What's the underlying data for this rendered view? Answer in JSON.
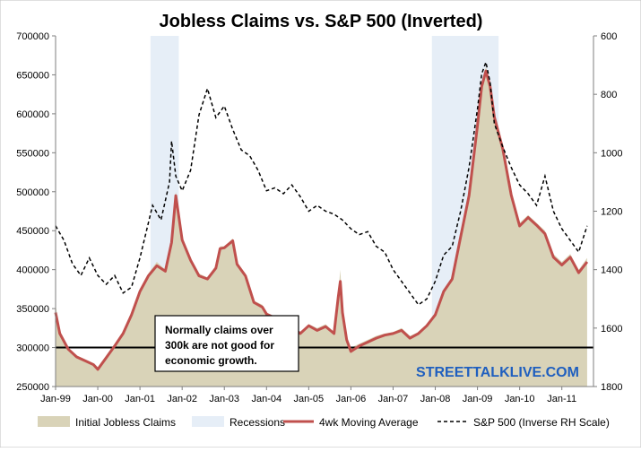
{
  "chart_data": {
    "type": "area",
    "title": "Jobless Claims vs. S&P 500 (Inverted)",
    "xlabel": "",
    "ylabel": "",
    "x_ticks": [
      "Jan-99",
      "Jan-00",
      "Jan-01",
      "Jan-02",
      "Jan-03",
      "Jan-04",
      "Jan-05",
      "Jan-06",
      "Jan-07",
      "Jan-08",
      "Jan-09",
      "Jan-10",
      "Jan-11"
    ],
    "x_range": [
      1999.0,
      2011.75
    ],
    "y_left": {
      "range": [
        250000,
        700000
      ],
      "ticks": [
        "250000",
        "300000",
        "350000",
        "400000",
        "450000",
        "500000",
        "550000",
        "600000",
        "650000",
        "700000"
      ]
    },
    "y_right": {
      "range": [
        600,
        1800
      ],
      "inverted": true,
      "ticks": [
        "600",
        "800",
        "1000",
        "1200",
        "1400",
        "1600",
        "1800"
      ]
    },
    "grid": false,
    "legend_position": "bottom",
    "reference_line": {
      "value": 300000,
      "axis": "left",
      "color": "#000000"
    },
    "recessions": [
      {
        "start": 2001.25,
        "end": 2001.92
      },
      {
        "start": 2007.92,
        "end": 2009.5
      }
    ],
    "annotations": [
      {
        "lines": [
          "Normally claims over",
          "300k are not good for",
          "economic growth."
        ]
      }
    ],
    "watermark": "STREETTALKLIVE.COM",
    "series": [
      {
        "name": "Initial Jobless Claims",
        "kind": "area",
        "axis": "left",
        "color": "#d9d3b8",
        "x": [
          1999.0,
          1999.1,
          1999.3,
          1999.5,
          1999.7,
          1999.9,
          2000.0,
          2000.2,
          2000.4,
          2000.6,
          2000.8,
          2001.0,
          2001.2,
          2001.4,
          2001.6,
          2001.75,
          2001.85,
          2002.0,
          2002.2,
          2002.4,
          2002.6,
          2002.8,
          2002.9,
          2003.0,
          2003.2,
          2003.3,
          2003.5,
          2003.7,
          2003.9,
          2004.0,
          2004.2,
          2004.4,
          2004.6,
          2004.8,
          2005.0,
          2005.2,
          2005.4,
          2005.6,
          2005.7,
          2005.75,
          2005.8,
          2005.9,
          2006.0,
          2006.2,
          2006.4,
          2006.6,
          2006.8,
          2007.0,
          2007.2,
          2007.4,
          2007.6,
          2007.8,
          2008.0,
          2008.2,
          2008.4,
          2008.6,
          2008.8,
          2009.0,
          2009.1,
          2009.2,
          2009.3,
          2009.4,
          2009.6,
          2009.8,
          2010.0,
          2010.2,
          2010.4,
          2010.6,
          2010.8,
          2011.0,
          2011.2,
          2011.4,
          2011.6
        ],
        "values": [
          355000,
          320000,
          300000,
          290000,
          285000,
          280000,
          275000,
          290000,
          305000,
          320000,
          345000,
          375000,
          395000,
          410000,
          400000,
          440000,
          500000,
          440000,
          415000,
          395000,
          390000,
          405000,
          430000,
          430000,
          440000,
          410000,
          395000,
          360000,
          355000,
          345000,
          340000,
          335000,
          330000,
          320000,
          330000,
          325000,
          330000,
          320000,
          370000,
          400000,
          350000,
          315000,
          300000,
          305000,
          310000,
          315000,
          318000,
          320000,
          325000,
          315000,
          320000,
          330000,
          345000,
          375000,
          390000,
          445000,
          500000,
          590000,
          640000,
          660000,
          640000,
          600000,
          560000,
          500000,
          460000,
          470000,
          460000,
          450000,
          420000,
          410000,
          420000,
          400000,
          415000
        ]
      },
      {
        "name": "Recessions",
        "kind": "band",
        "axis": "left",
        "color": "#e6eef7",
        "x": [],
        "values": []
      },
      {
        "name": "4wk Moving Average",
        "kind": "line",
        "axis": "left",
        "color": "#c0504d",
        "x": [
          1999.0,
          1999.1,
          1999.3,
          1999.5,
          1999.7,
          1999.9,
          2000.0,
          2000.2,
          2000.4,
          2000.6,
          2000.8,
          2001.0,
          2001.2,
          2001.4,
          2001.6,
          2001.75,
          2001.85,
          2002.0,
          2002.2,
          2002.4,
          2002.6,
          2002.8,
          2002.9,
          2003.0,
          2003.2,
          2003.3,
          2003.5,
          2003.7,
          2003.9,
          2004.0,
          2004.2,
          2004.4,
          2004.6,
          2004.8,
          2005.0,
          2005.2,
          2005.4,
          2005.6,
          2005.7,
          2005.75,
          2005.8,
          2005.9,
          2006.0,
          2006.2,
          2006.4,
          2006.6,
          2006.8,
          2007.0,
          2007.2,
          2007.4,
          2007.6,
          2007.8,
          2008.0,
          2008.2,
          2008.4,
          2008.6,
          2008.8,
          2009.0,
          2009.1,
          2009.2,
          2009.3,
          2009.4,
          2009.6,
          2009.8,
          2010.0,
          2010.2,
          2010.4,
          2010.6,
          2010.8,
          2011.0,
          2011.2,
          2011.4,
          2011.6
        ],
        "values": [
          345000,
          318000,
          298000,
          288000,
          283000,
          278000,
          272000,
          287000,
          302000,
          318000,
          342000,
          372000,
          392000,
          405000,
          398000,
          435000,
          495000,
          438000,
          412000,
          392000,
          388000,
          402000,
          427000,
          428000,
          437000,
          407000,
          392000,
          358000,
          352000,
          343000,
          338000,
          332000,
          327000,
          318000,
          328000,
          322000,
          327000,
          318000,
          365000,
          385000,
          345000,
          310000,
          295000,
          302000,
          307000,
          312000,
          316000,
          318000,
          322000,
          312000,
          318000,
          328000,
          342000,
          372000,
          388000,
          442000,
          495000,
          585000,
          635000,
          655000,
          635000,
          596000,
          555000,
          496000,
          456000,
          467000,
          457000,
          446000,
          416000,
          406000,
          416000,
          396000,
          410000
        ]
      },
      {
        "name": "S&P 500 (Inverse RH Scale)",
        "kind": "dashed-line",
        "axis": "right",
        "color": "#000000",
        "x": [
          1999.0,
          1999.2,
          1999.4,
          1999.6,
          1999.8,
          2000.0,
          2000.2,
          2000.4,
          2000.6,
          2000.8,
          2001.0,
          2001.2,
          2001.3,
          2001.5,
          2001.7,
          2001.75,
          2001.85,
          2002.0,
          2002.2,
          2002.4,
          2002.6,
          2002.8,
          2003.0,
          2003.2,
          2003.4,
          2003.6,
          2003.8,
          2004.0,
          2004.2,
          2004.4,
          2004.6,
          2004.8,
          2005.0,
          2005.2,
          2005.4,
          2005.6,
          2005.8,
          2006.0,
          2006.2,
          2006.4,
          2006.6,
          2006.8,
          2007.0,
          2007.2,
          2007.4,
          2007.6,
          2007.8,
          2008.0,
          2008.2,
          2008.4,
          2008.6,
          2008.8,
          2009.0,
          2009.1,
          2009.2,
          2009.3,
          2009.4,
          2009.6,
          2009.8,
          2010.0,
          2010.2,
          2010.4,
          2010.6,
          2010.8,
          2011.0,
          2011.2,
          2011.4,
          2011.6
        ],
        "values": [
          1250,
          1300,
          1380,
          1420,
          1360,
          1420,
          1450,
          1420,
          1480,
          1460,
          1360,
          1240,
          1180,
          1230,
          1100,
          960,
          1080,
          1130,
          1060,
          870,
          780,
          880,
          840,
          920,
          990,
          1010,
          1060,
          1130,
          1120,
          1140,
          1110,
          1150,
          1200,
          1180,
          1200,
          1210,
          1230,
          1260,
          1280,
          1270,
          1320,
          1340,
          1400,
          1440,
          1480,
          1520,
          1500,
          1440,
          1350,
          1320,
          1200,
          1050,
          850,
          730,
          690,
          760,
          900,
          980,
          1050,
          1110,
          1140,
          1180,
          1080,
          1200,
          1260,
          1300,
          1340,
          1250
        ]
      }
    ]
  }
}
